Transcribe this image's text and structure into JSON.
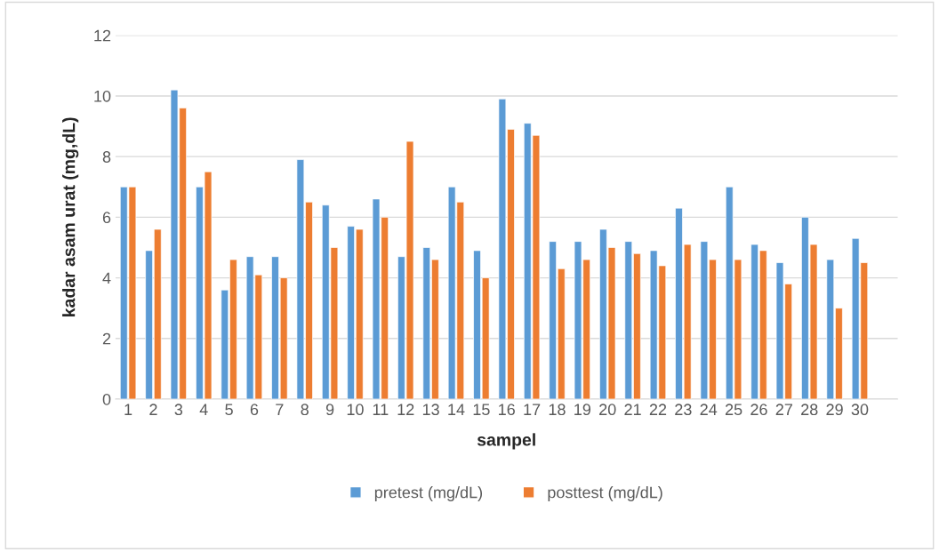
{
  "chart_data": {
    "type": "bar",
    "xlabel": "sampel",
    "ylabel": "kadar asam urat (mg,dL)",
    "categories": [
      "1",
      "2",
      "3",
      "4",
      "5",
      "6",
      "7",
      "8",
      "9",
      "10",
      "11",
      "12",
      "13",
      "14",
      "15",
      "16",
      "17",
      "18",
      "19",
      "20",
      "21",
      "22",
      "23",
      "24",
      "25",
      "26",
      "27",
      "28",
      "29",
      "30"
    ],
    "series": [
      {
        "name": "pretest (mg/dL)",
        "color": "#5b9bd5",
        "values": [
          7.0,
          4.9,
          10.2,
          7.0,
          3.6,
          4.7,
          4.7,
          7.9,
          6.4,
          5.7,
          6.6,
          4.7,
          5.0,
          7.0,
          4.9,
          9.9,
          9.1,
          5.2,
          5.2,
          5.6,
          5.2,
          4.9,
          6.3,
          5.2,
          7.0,
          5.1,
          4.5,
          6.0,
          4.6,
          5.3
        ]
      },
      {
        "name": "posttest (mg/dL)",
        "color": "#ed7d31",
        "values": [
          7.0,
          5.6,
          9.6,
          7.5,
          4.6,
          4.1,
          4.0,
          6.5,
          5.0,
          5.6,
          6.0,
          8.5,
          4.6,
          6.5,
          4.0,
          8.9,
          8.7,
          4.3,
          4.6,
          5.0,
          4.8,
          4.4,
          5.1,
          4.6,
          4.6,
          4.9,
          3.8,
          5.1,
          3.0,
          4.5
        ]
      }
    ],
    "ylim": [
      0,
      12
    ],
    "yticks": [
      0,
      2,
      4,
      6,
      8,
      10,
      12
    ],
    "grid": "y",
    "legend": "bottom"
  }
}
